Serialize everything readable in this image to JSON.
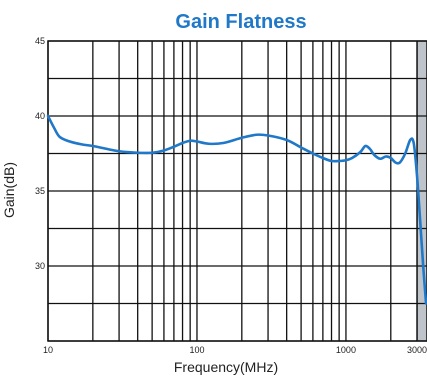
{
  "chart_data": {
    "type": "line",
    "title": "Gain Flatness",
    "xlabel": "Frequency(MHz)",
    "ylabel": "Gain(dB)",
    "x_scale": "log",
    "xlim": [
      10,
      3500
    ],
    "ylim": [
      25,
      45
    ],
    "x_tick_labels": [
      {
        "value": 10,
        "label": "10"
      },
      {
        "value": 100,
        "label": "100"
      },
      {
        "value": 1000,
        "label": "1000"
      },
      {
        "value": 3000,
        "label": "3000"
      }
    ],
    "y_tick_labels": [
      {
        "value": 45,
        "label": "45"
      },
      {
        "value": 40,
        "label": "40"
      },
      {
        "value": 35,
        "label": "35"
      },
      {
        "value": 30,
        "label": "30"
      }
    ],
    "grid": true,
    "shaded_region": {
      "from": 3000,
      "to": 3500,
      "color": "#bfc4ca"
    },
    "series": [
      {
        "color": "#1f78c8",
        "points": [
          [
            10,
            40.0
          ],
          [
            11,
            39.2
          ],
          [
            12,
            38.6
          ],
          [
            14,
            38.3
          ],
          [
            17,
            38.1
          ],
          [
            20,
            38.0
          ],
          [
            25,
            37.8
          ],
          [
            30,
            37.65
          ],
          [
            40,
            37.55
          ],
          [
            50,
            37.55
          ],
          [
            60,
            37.7
          ],
          [
            70,
            37.95
          ],
          [
            80,
            38.2
          ],
          [
            90,
            38.35
          ],
          [
            100,
            38.3
          ],
          [
            120,
            38.15
          ],
          [
            150,
            38.2
          ],
          [
            200,
            38.55
          ],
          [
            250,
            38.75
          ],
          [
            300,
            38.7
          ],
          [
            400,
            38.4
          ],
          [
            500,
            37.9
          ],
          [
            600,
            37.5
          ],
          [
            700,
            37.2
          ],
          [
            800,
            37.0
          ],
          [
            900,
            37.0
          ],
          [
            1000,
            37.05
          ],
          [
            1100,
            37.2
          ],
          [
            1250,
            37.6
          ],
          [
            1350,
            38.0
          ],
          [
            1450,
            37.8
          ],
          [
            1550,
            37.4
          ],
          [
            1700,
            37.15
          ],
          [
            1850,
            37.3
          ],
          [
            2000,
            37.2
          ],
          [
            2150,
            36.9
          ],
          [
            2300,
            36.9
          ],
          [
            2500,
            37.5
          ],
          [
            2700,
            38.4
          ],
          [
            2850,
            38.2
          ],
          [
            3000,
            36.0
          ],
          [
            3150,
            33.0
          ],
          [
            3300,
            30.0
          ],
          [
            3450,
            27.5
          ]
        ]
      }
    ],
    "colors": {
      "title": "#1f78c8",
      "curve": "#1f78c8",
      "grid": "#111111",
      "shade": "#bfc4ca"
    }
  }
}
